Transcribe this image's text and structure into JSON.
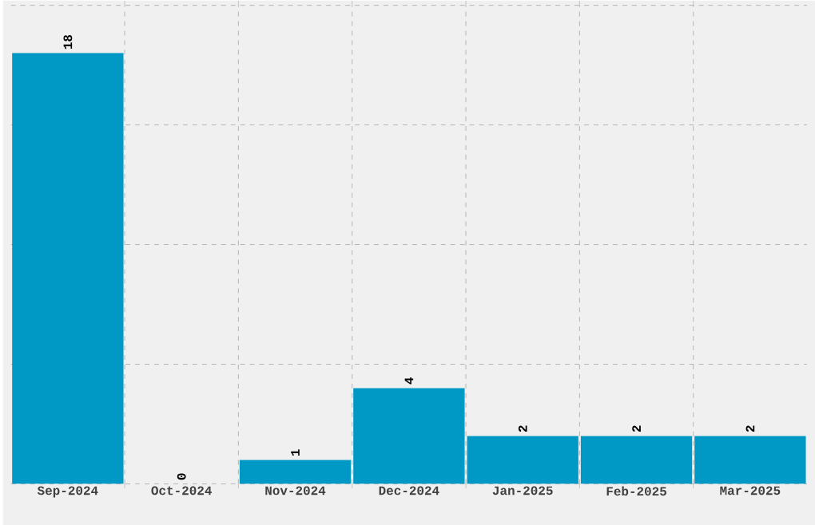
{
  "chart_data": {
    "type": "bar",
    "categories": [
      "Sep-2024",
      "Oct-2024",
      "Nov-2024",
      "Dec-2024",
      "Jan-2025",
      "Feb-2025",
      "Mar-2025"
    ],
    "values": [
      18,
      0,
      1,
      4,
      2,
      2,
      2
    ],
    "color": "#0099c6",
    "ylim": [
      0,
      20
    ],
    "yticks": [
      {
        "value": 0,
        "label": null
      },
      {
        "value": 5,
        "label": null
      },
      {
        "value": 10,
        "label": null
      },
      {
        "value": 15,
        "label": null
      },
      {
        "value": 20,
        "label": null
      }
    ],
    "tick_labels": "x",
    "grid": true,
    "data_labels": true
  }
}
